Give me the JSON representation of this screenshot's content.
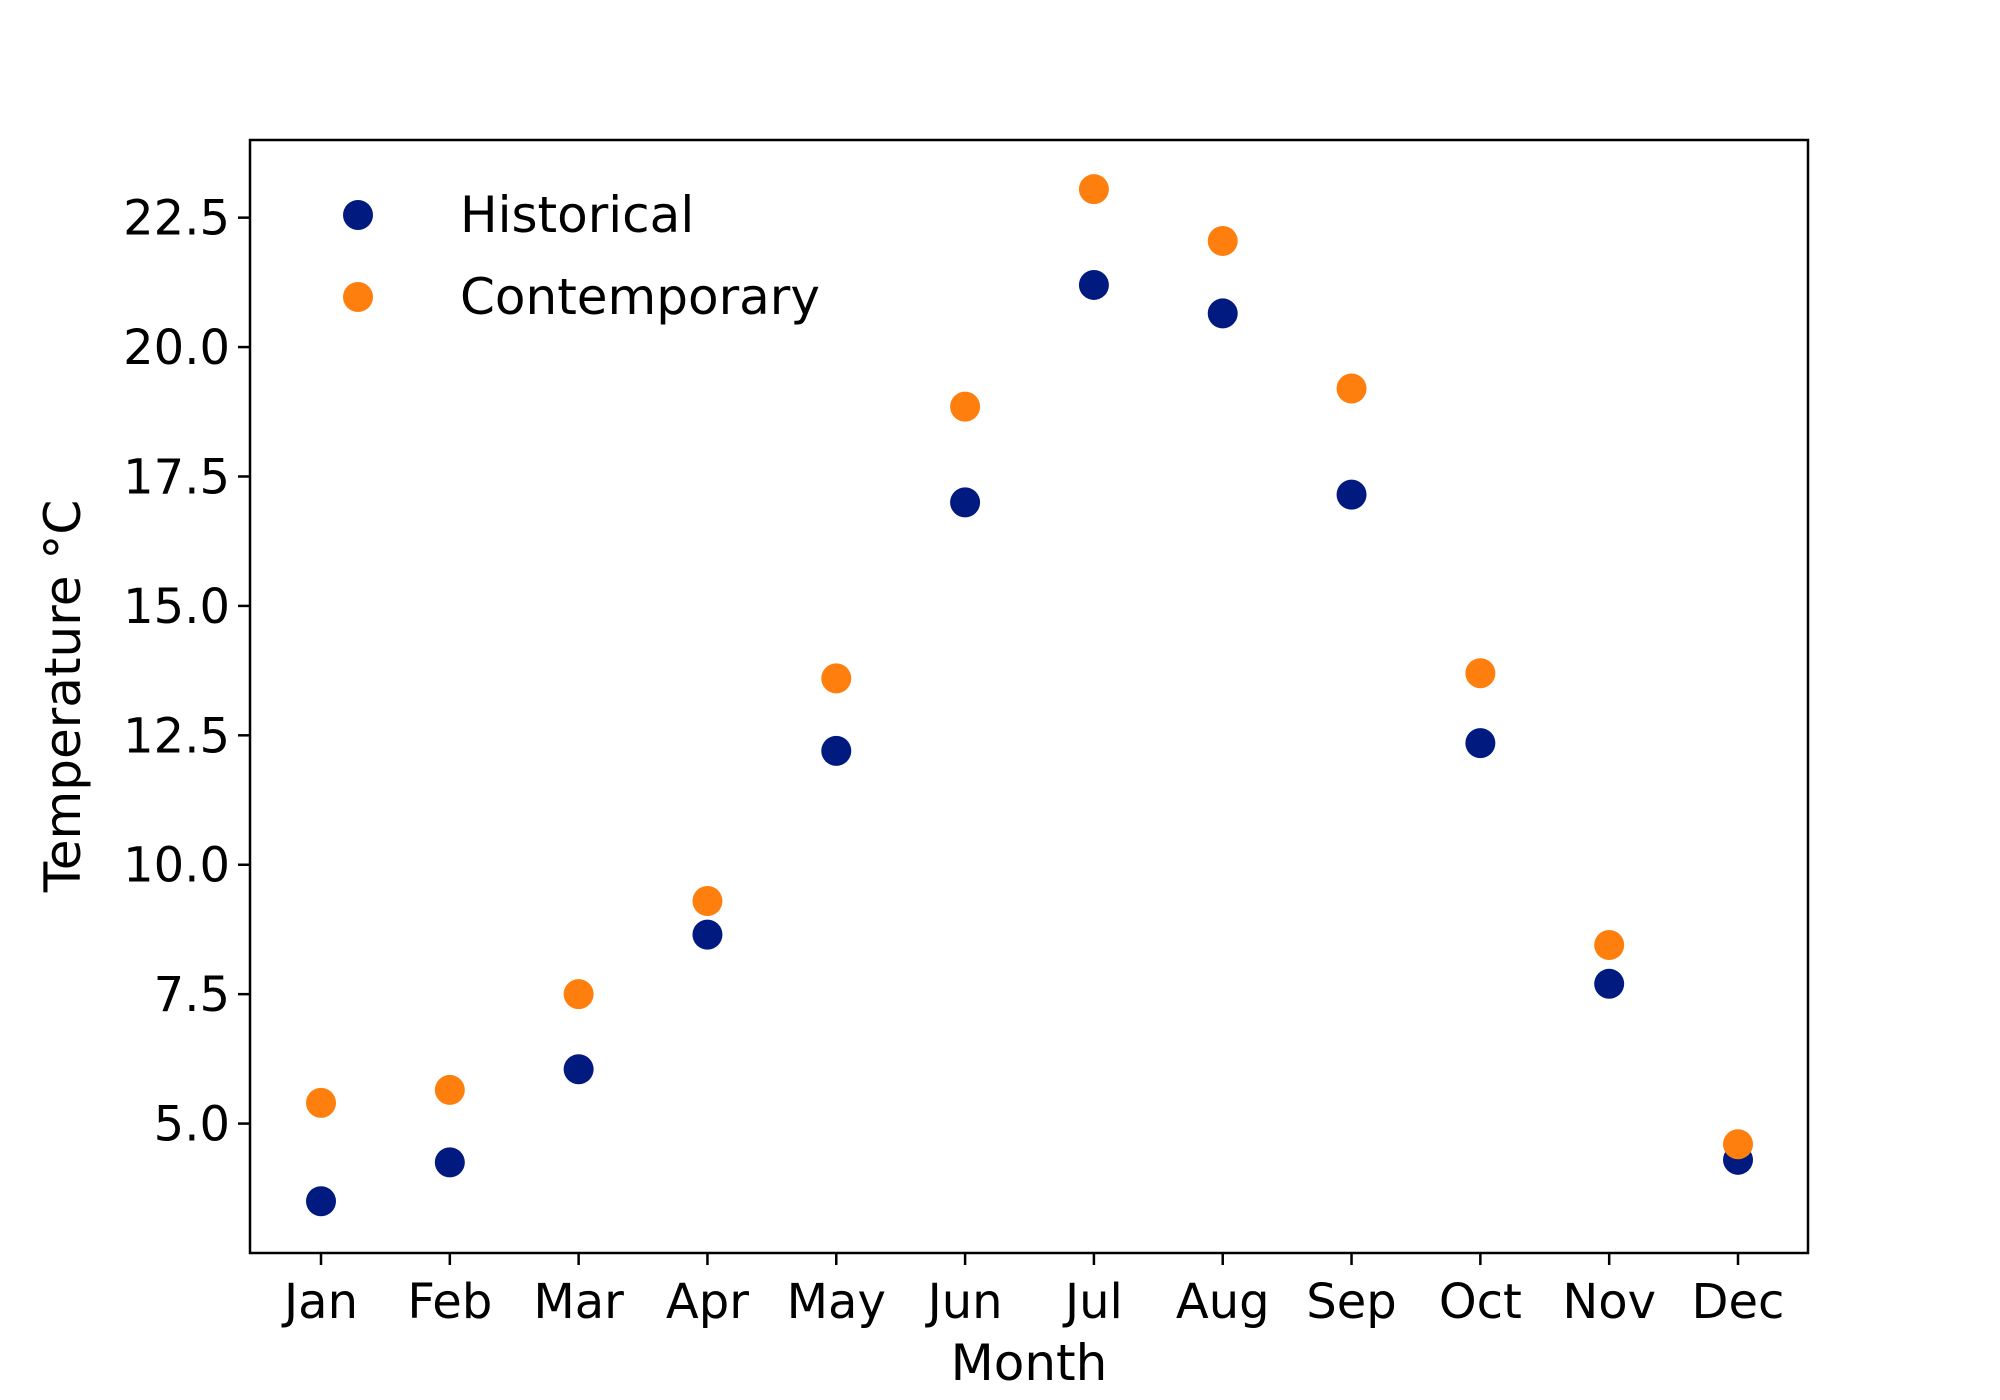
{
  "chart_data": {
    "type": "scatter",
    "xlabel": "Month",
    "ylabel": "Temperature $^\\circ$C",
    "ylabel_display": "Temperature °C",
    "categories": [
      "Jan",
      "Feb",
      "Mar",
      "Apr",
      "May",
      "Jun",
      "Jul",
      "Aug",
      "Sep",
      "Oct",
      "Nov",
      "Dec"
    ],
    "yticks": [
      "5.0",
      "7.5",
      "10.0",
      "12.5",
      "15.0",
      "17.5",
      "20.0",
      "22.5"
    ],
    "ylim": [
      2.5,
      24.0
    ],
    "grid": false,
    "legend_position": "top-left",
    "series": [
      {
        "name": "Historical",
        "color": "#001a80",
        "values": [
          3.5,
          4.25,
          6.05,
          8.65,
          12.2,
          17.0,
          21.2,
          20.65,
          17.15,
          12.35,
          7.7,
          4.3
        ]
      },
      {
        "name": "Contemporary",
        "color": "#ff7f0e",
        "values": [
          5.4,
          5.65,
          7.5,
          9.3,
          13.6,
          18.85,
          23.05,
          22.05,
          19.2,
          13.7,
          8.45,
          4.6
        ]
      }
    ]
  }
}
